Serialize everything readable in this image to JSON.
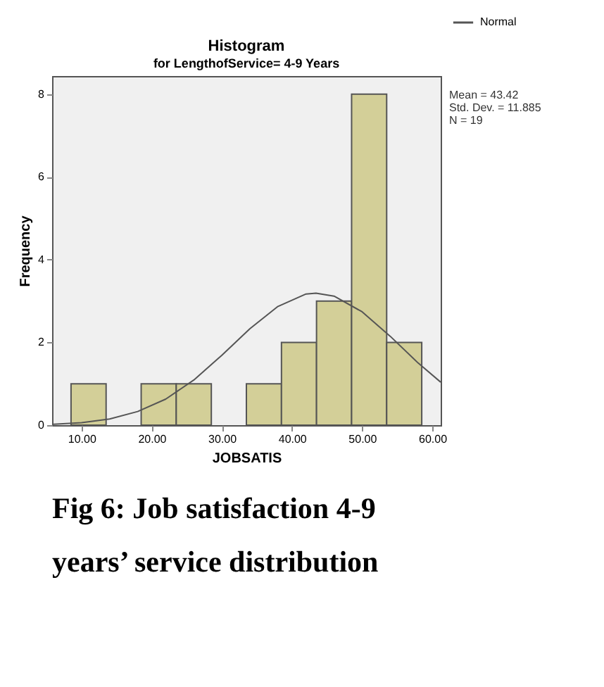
{
  "chart_data": {
    "type": "histogram",
    "title": "Histogram",
    "subtitle": "for LengthofService= 4-9 Years",
    "xlabel": "JOBSATIS",
    "ylabel": "Frequency",
    "bins": [
      8.5,
      13.5,
      18.5,
      23.5,
      28.5,
      33.5,
      38.5,
      43.5,
      48.5,
      53.5,
      58.5
    ],
    "values": [
      1,
      0,
      1,
      1,
      0,
      1,
      2,
      3,
      8,
      2
    ],
    "color": "#d3cf98",
    "series": [
      {
        "type": "line",
        "name": "Normal",
        "color": "#555555",
        "x": [
          6,
          10,
          14,
          18,
          22,
          26,
          30,
          34,
          38,
          42,
          43.42,
          46,
          50,
          54,
          58,
          61.2
        ],
        "values": [
          0.02,
          0.06,
          0.15,
          0.33,
          0.63,
          1.09,
          1.69,
          2.33,
          2.87,
          3.17,
          3.19,
          3.12,
          2.74,
          2.15,
          1.5,
          1.04
        ]
      }
    ],
    "xlim": [
      5.8,
      61.2
    ],
    "ylim": [
      0,
      8.44
    ],
    "xticks": [
      {
        "value": 10,
        "label": "10.00"
      },
      {
        "value": 20,
        "label": "20.00"
      },
      {
        "value": 30,
        "label": "30.00"
      },
      {
        "value": 40,
        "label": "40.00"
      },
      {
        "value": 50,
        "label": "50.00"
      },
      {
        "value": 60,
        "label": "60.00"
      }
    ],
    "yticks": [
      0,
      2,
      4,
      6,
      8
    ],
    "grid": false,
    "legend": "top right",
    "annotations": [
      "Mean = 43.42",
      "Std. Dev. = 11.885",
      "N = 19",
      "Fig 6: Job satisfaction 4-9 years’ service distribution"
    ]
  }
}
